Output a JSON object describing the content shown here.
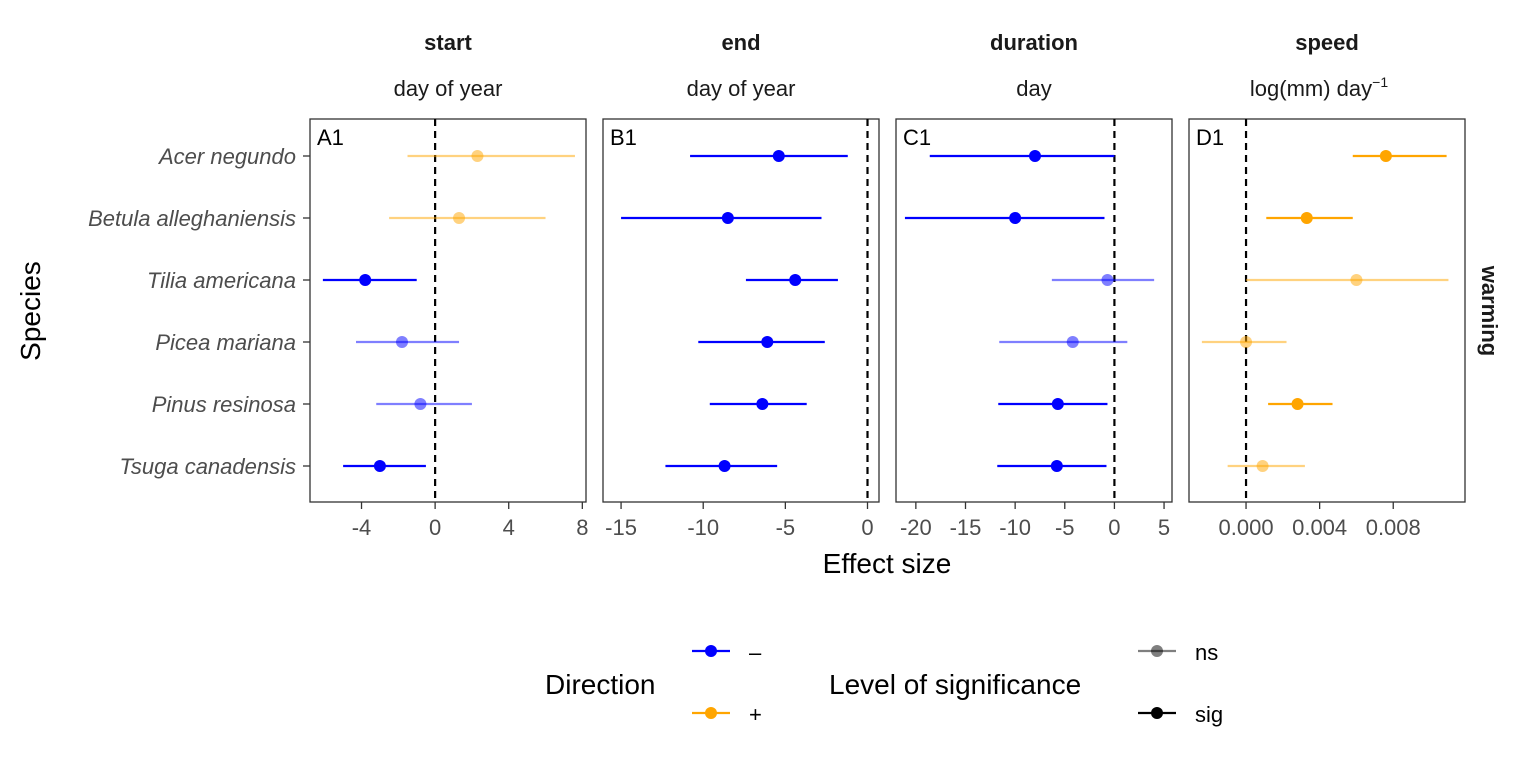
{
  "chart_data": {
    "type": "forest",
    "xlabel": "Effect size",
    "ylabel": "Species",
    "row_strip": "warming",
    "categories": [
      "Acer negundo",
      "Betula alleghaniensis",
      "Tilia americana",
      "Picea mariana",
      "Pinus resinosa",
      "Tsuga canadensis"
    ],
    "colors": {
      "negative": "#0000ff",
      "positive": "#ffa500",
      "axis": "#333333",
      "reference_line": "#000000"
    },
    "reference_line": {
      "x": 0,
      "style": "dashed"
    },
    "legend": {
      "placement": "bottom",
      "direction": {
        "title": "Direction",
        "items": [
          {
            "label": "–",
            "color": "#0000ff"
          },
          {
            "label": "+",
            "color": "#ffa500"
          }
        ]
      },
      "significance": {
        "title": "Level of significance",
        "items": [
          {
            "label": "ns",
            "opacity": 0.5
          },
          {
            "label": "sig",
            "opacity": 1.0
          }
        ]
      }
    },
    "panels": [
      {
        "tag": "A1",
        "title": "start",
        "unit": "day of year",
        "xlim": [
          -6.8,
          8.2
        ],
        "xticks": [
          -4,
          0,
          4,
          8
        ],
        "xtick_labels": [
          "-4",
          "0",
          "4",
          "8"
        ],
        "points": [
          {
            "species": "Acer negundo",
            "estimate": 2.3,
            "lower": -1.5,
            "upper": 7.6,
            "direction": "+",
            "significance": "ns"
          },
          {
            "species": "Betula alleghaniensis",
            "estimate": 1.3,
            "lower": -2.5,
            "upper": 6.0,
            "direction": "+",
            "significance": "ns"
          },
          {
            "species": "Tilia americana",
            "estimate": -3.8,
            "lower": -6.1,
            "upper": -1.0,
            "direction": "–",
            "significance": "sig"
          },
          {
            "species": "Picea mariana",
            "estimate": -1.8,
            "lower": -4.3,
            "upper": 1.3,
            "direction": "–",
            "significance": "ns"
          },
          {
            "species": "Pinus resinosa",
            "estimate": -0.8,
            "lower": -3.2,
            "upper": 2.0,
            "direction": "–",
            "significance": "ns"
          },
          {
            "species": "Tsuga canadensis",
            "estimate": -3.0,
            "lower": -5.0,
            "upper": -0.5,
            "direction": "–",
            "significance": "sig"
          }
        ]
      },
      {
        "tag": "B1",
        "title": "end",
        "unit": "day of year",
        "xlim": [
          -16.1,
          0.7
        ],
        "xticks": [
          -15,
          -10,
          -5,
          0
        ],
        "xtick_labels": [
          "-15",
          "-10",
          "-5",
          "0"
        ],
        "points": [
          {
            "species": "Acer negundo",
            "estimate": -5.4,
            "lower": -10.8,
            "upper": -1.2,
            "direction": "–",
            "significance": "sig"
          },
          {
            "species": "Betula alleghaniensis",
            "estimate": -8.5,
            "lower": -15.0,
            "upper": -2.8,
            "direction": "–",
            "significance": "sig"
          },
          {
            "species": "Tilia americana",
            "estimate": -4.4,
            "lower": -7.4,
            "upper": -1.8,
            "direction": "–",
            "significance": "sig"
          },
          {
            "species": "Picea mariana",
            "estimate": -6.1,
            "lower": -10.3,
            "upper": -2.6,
            "direction": "–",
            "significance": "sig"
          },
          {
            "species": "Pinus resinosa",
            "estimate": -6.4,
            "lower": -9.6,
            "upper": -3.7,
            "direction": "–",
            "significance": "sig"
          },
          {
            "species": "Tsuga canadensis",
            "estimate": -8.7,
            "lower": -12.3,
            "upper": -5.5,
            "direction": "–",
            "significance": "sig"
          }
        ]
      },
      {
        "tag": "C1",
        "title": "duration",
        "unit": "day",
        "xlim": [
          -22.0,
          5.8
        ],
        "xticks": [
          -20,
          -15,
          -10,
          -5,
          0,
          5
        ],
        "xtick_labels": [
          "-20",
          "-15",
          "-10",
          "-5",
          "0",
          "5"
        ],
        "points": [
          {
            "species": "Acer negundo",
            "estimate": -8.0,
            "lower": -18.6,
            "upper": 0.0,
            "direction": "–",
            "significance": "sig"
          },
          {
            "species": "Betula alleghaniensis",
            "estimate": -10.0,
            "lower": -21.1,
            "upper": -1.0,
            "direction": "–",
            "significance": "sig"
          },
          {
            "species": "Tilia americana",
            "estimate": -0.7,
            "lower": -6.3,
            "upper": 4.0,
            "direction": "–",
            "significance": "ns"
          },
          {
            "species": "Picea mariana",
            "estimate": -4.2,
            "lower": -11.6,
            "upper": 1.3,
            "direction": "–",
            "significance": "ns"
          },
          {
            "species": "Pinus resinosa",
            "estimate": -5.7,
            "lower": -11.7,
            "upper": -0.7,
            "direction": "–",
            "significance": "sig"
          },
          {
            "species": "Tsuga canadensis",
            "estimate": -5.8,
            "lower": -11.8,
            "upper": -0.8,
            "direction": "–",
            "significance": "sig"
          }
        ]
      },
      {
        "tag": "D1",
        "title": "speed",
        "unit_main": "log(mm) day",
        "unit_sup": "−1",
        "xlim": [
          -0.0031,
          0.0119
        ],
        "xticks": [
          0.0,
          0.004,
          0.008
        ],
        "xtick_labels": [
          "0.000",
          "0.004",
          "0.008"
        ],
        "points": [
          {
            "species": "Acer negundo",
            "estimate": 0.0076,
            "lower": 0.0058,
            "upper": 0.0109,
            "direction": "+",
            "significance": "sig"
          },
          {
            "species": "Betula alleghaniensis",
            "estimate": 0.0033,
            "lower": 0.0011,
            "upper": 0.0058,
            "direction": "+",
            "significance": "sig"
          },
          {
            "species": "Tilia americana",
            "estimate": 0.006,
            "lower": 0.0,
            "upper": 0.011,
            "direction": "+",
            "significance": "ns"
          },
          {
            "species": "Picea mariana",
            "estimate": 0.0,
            "lower": -0.0024,
            "upper": 0.0022,
            "direction": "+",
            "significance": "ns"
          },
          {
            "species": "Pinus resinosa",
            "estimate": 0.0028,
            "lower": 0.0012,
            "upper": 0.0047,
            "direction": "+",
            "significance": "sig"
          },
          {
            "species": "Tsuga canadensis",
            "estimate": 0.0009,
            "lower": -0.001,
            "upper": 0.0032,
            "direction": "+",
            "significance": "ns"
          }
        ]
      }
    ]
  }
}
